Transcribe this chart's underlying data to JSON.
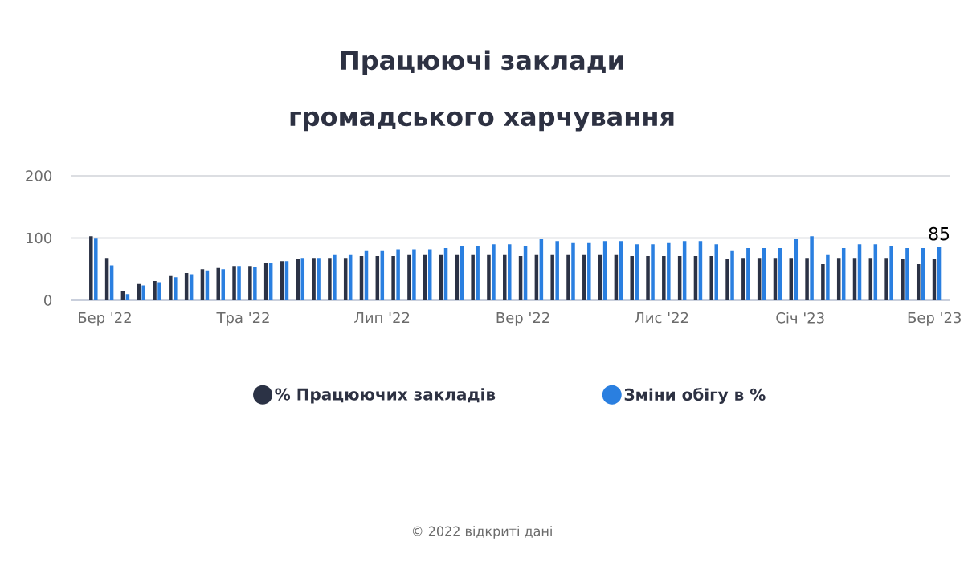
{
  "chart_data": {
    "type": "bar",
    "title": "Працюючі заклади громадського харчування",
    "annotations": [
      "© 2022 відкриті дані"
    ],
    "x": [
      "2022-02-24",
      "2022-03-03",
      "2022-03-10",
      "2022-03-17",
      "2022-03-24",
      "2022-03-31",
      "2022-04-07",
      "2022-04-14",
      "2022-04-21",
      "2022-04-28",
      "2022-05-05",
      "2022-05-12",
      "2022-05-19",
      "2022-05-26",
      "2022-06-02",
      "2022-06-09",
      "2022-06-16",
      "2022-06-23",
      "2022-06-30",
      "2022-07-07",
      "2022-07-14",
      "2022-07-21",
      "2022-07-28",
      "2022-08-04",
      "2022-08-11",
      "2022-08-18",
      "2022-08-25",
      "2022-09-01",
      "2022-09-08",
      "2022-09-15",
      "2022-09-22",
      "2022-09-29",
      "2022-10-06",
      "2022-10-13",
      "2022-10-20",
      "2022-10-27",
      "2022-11-03",
      "2022-11-10",
      "2022-11-17",
      "2022-11-24",
      "2022-12-01",
      "2022-12-08",
      "2022-12-15",
      "2022-12-22",
      "2022-12-29",
      "2023-01-05",
      "2023-01-12",
      "2023-01-19",
      "2023-01-26",
      "2023-02-02",
      "2023-02-09",
      "2023-02-16",
      "2023-02-23",
      "2023-03-02"
    ],
    "series": [
      {
        "name": "% Працюючих закладів",
        "color": "#2b3245",
        "values": [
          103,
          68,
          15,
          26,
          31,
          39,
          44,
          50,
          52,
          55,
          55,
          60,
          63,
          66,
          68,
          68,
          68,
          71,
          71,
          71,
          74,
          74,
          74,
          74,
          74,
          74,
          74,
          71,
          74,
          74,
          74,
          74,
          74,
          74,
          71,
          71,
          71,
          71,
          71,
          71,
          66,
          68,
          68,
          68,
          68,
          68,
          58,
          68,
          68,
          68,
          68,
          66,
          58,
          66
        ]
      },
      {
        "name": "Зміни обігу в %",
        "color": "#2a7fe0",
        "values": [
          99,
          56,
          10,
          24,
          29,
          37,
          42,
          48,
          50,
          55,
          53,
          60,
          63,
          68,
          68,
          74,
          74,
          79,
          79,
          82,
          82,
          82,
          84,
          87,
          87,
          90,
          90,
          87,
          98,
          95,
          92,
          92,
          95,
          95,
          90,
          90,
          92,
          95,
          95,
          90,
          79,
          84,
          84,
          84,
          98,
          103,
          74,
          84,
          90,
          90,
          87,
          84,
          84,
          85
        ],
        "value_labels": [
          null,
          null,
          null,
          null,
          null,
          null,
          null,
          null,
          null,
          null,
          null,
          null,
          null,
          null,
          null,
          null,
          null,
          null,
          null,
          null,
          null,
          null,
          null,
          null,
          null,
          null,
          null,
          null,
          null,
          null,
          null,
          null,
          null,
          null,
          null,
          null,
          null,
          null,
          null,
          null,
          null,
          null,
          null,
          null,
          null,
          null,
          null,
          null,
          null,
          null,
          null,
          null,
          null,
          "85"
        ]
      }
    ],
    "xlim": [
      "2022-02-14",
      "2023-03-08"
    ],
    "xticks": [
      {
        "value": "2022-03-01",
        "label": "Бер '22"
      },
      {
        "value": "2022-05-01",
        "label": "Тра '22"
      },
      {
        "value": "2022-07-01",
        "label": "Лип '22"
      },
      {
        "value": "2022-09-01",
        "label": "Вер '22"
      },
      {
        "value": "2022-11-01",
        "label": "Лис '22"
      },
      {
        "value": "2023-01-01",
        "label": "Січ '23"
      },
      {
        "value": "2023-03-01",
        "label": "Бер '23"
      }
    ],
    "ylim": [
      0,
      200
    ],
    "yticks": [
      0,
      100,
      200
    ],
    "grid": "y",
    "legend": "bottom"
  }
}
